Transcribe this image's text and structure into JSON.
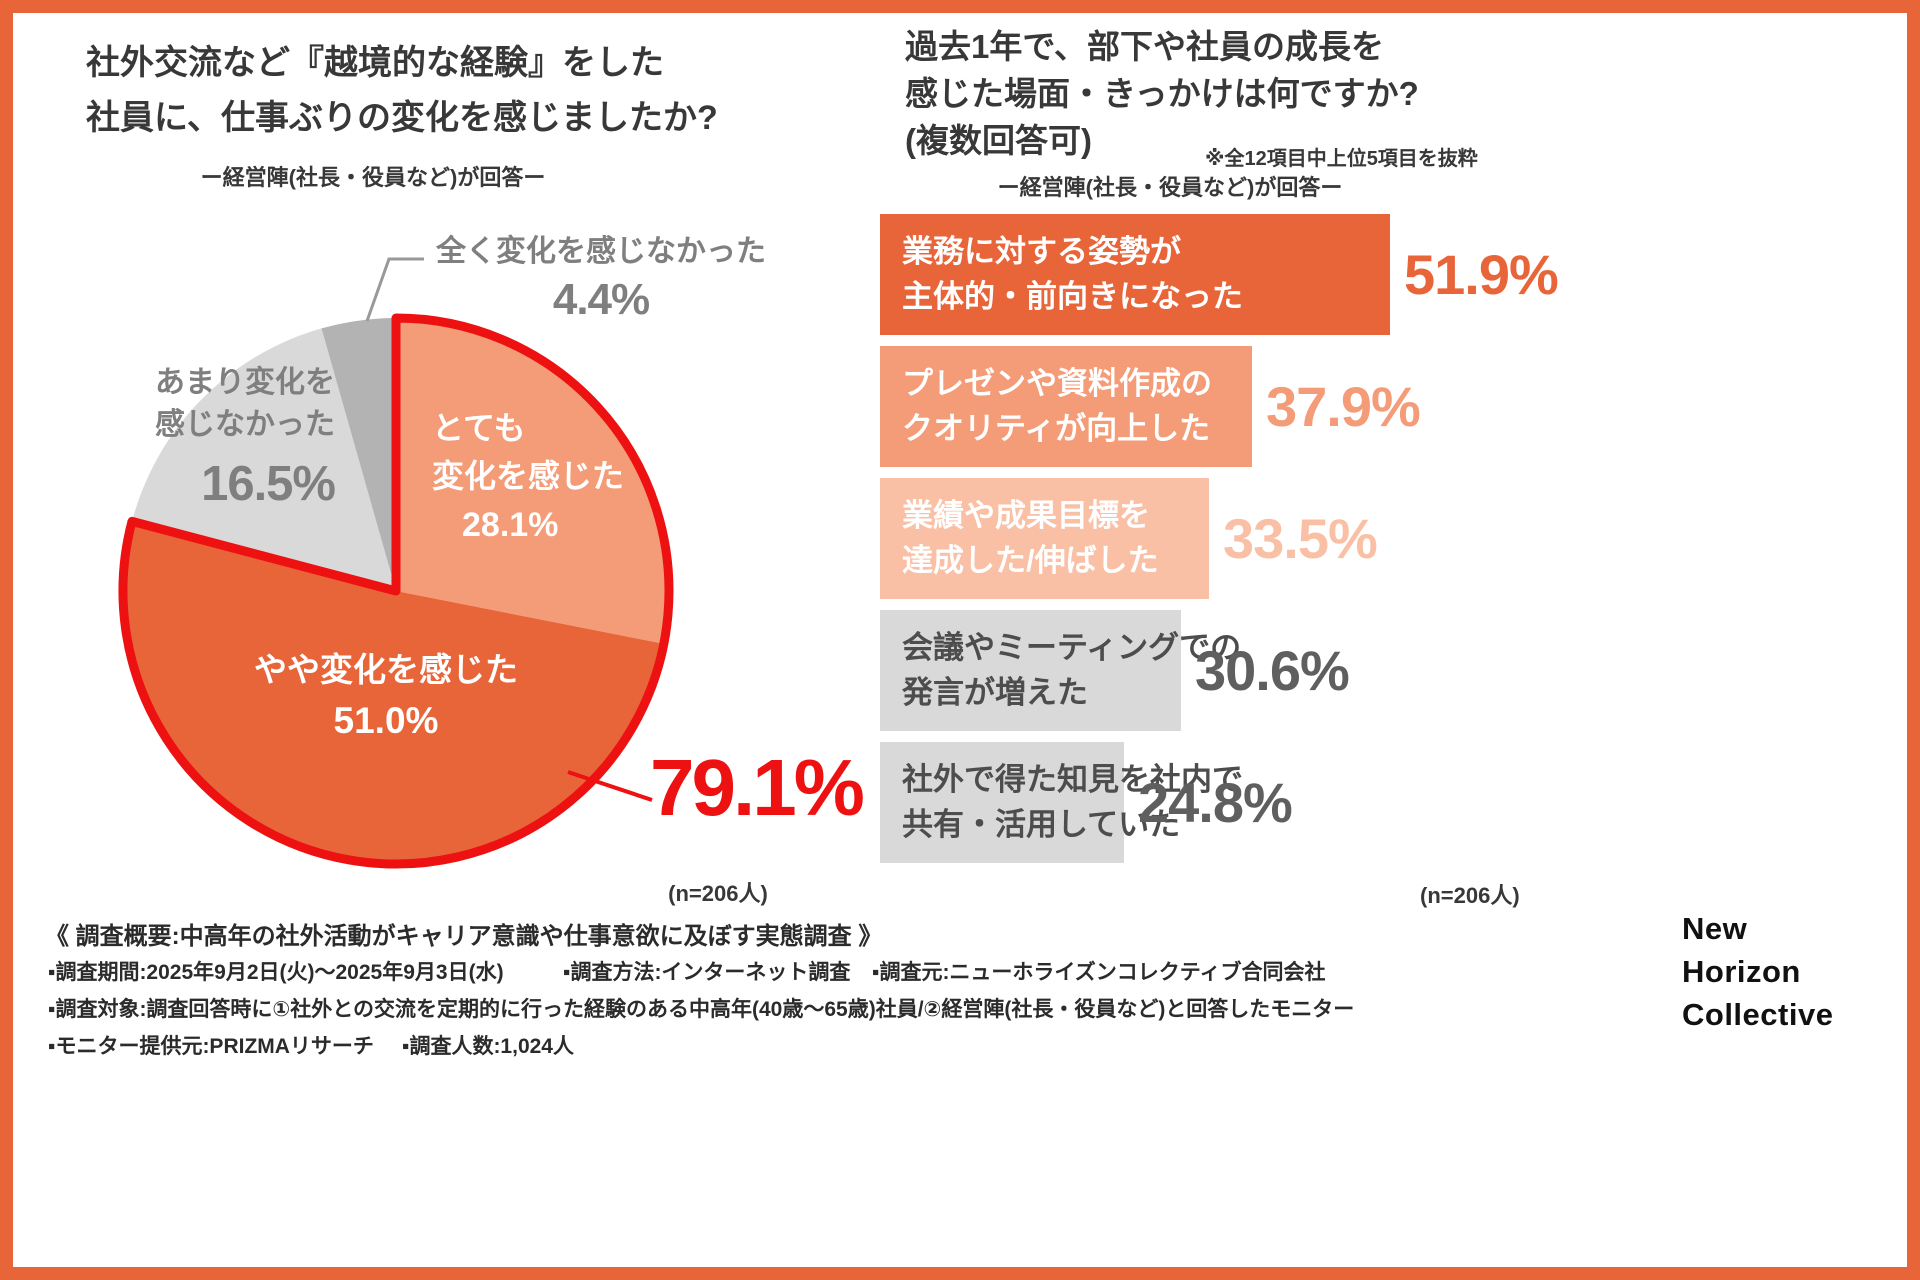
{
  "colors": {
    "accent_orange": "#e8653a",
    "salmon": "#f49b77",
    "light_salmon": "#f9c0a6",
    "light_gray": "#d9d9d9",
    "mid_gray": "#b3b3b3",
    "highlight_red": "#ee1111"
  },
  "left_chart": {
    "title_line1": "社外交流など『越境的な経験』をした",
    "title_line2": "社員に、仕事ぶりの変化を感じましたか?",
    "subtitle": "ー経営陣(社長・役員など)が回答ー",
    "sample_note": "(n=206人)"
  },
  "right_chart": {
    "title_line1": "過去1年で、部下や社員の成長を",
    "title_line2": "感じた場面・きっかけは何ですか?",
    "title_line3": "(複数回答可)",
    "note": "※全12項目中上位5項目を抜粋",
    "subtitle": "ー経営陣(社長・役員など)が回答ー",
    "sample_note": "(n=206人)"
  },
  "chart_data": [
    {
      "type": "pie",
      "title": "社外交流など『越境的な経験』をした社員に、仕事ぶりの変化を感じましたか?",
      "subtitle": "ー経営陣(社長・役員など)が回答ー",
      "sample_size": "n=206人",
      "start_angle_deg": 0,
      "direction": "clockwise",
      "segments": [
        {
          "label": "とても変化を感じた",
          "label_line1": "とても",
          "label_line2": "変化を感じた",
          "value": 28.1,
          "value_label": "28.1%",
          "color": "#f49b77",
          "text_color": "#ffffff"
        },
        {
          "label": "やや変化を感じた",
          "label_line1": "やや変化を感じた",
          "label_line2": "",
          "value": 51.0,
          "value_label": "51.0%",
          "color": "#e8653a",
          "text_color": "#ffffff"
        },
        {
          "label": "あまり変化を感じなかった",
          "label_line1": "あまり変化を",
          "label_line2": "感じなかった",
          "value": 16.5,
          "value_label": "16.5%",
          "color": "#d9d9d9",
          "text_color": "#7f7f7f"
        },
        {
          "label": "全く変化を感じなかった",
          "label_line1": "全く変化を感じなかった",
          "label_line2": "",
          "value": 4.4,
          "value_label": "4.4%",
          "color": "#b3b3b3",
          "text_color": "#7f7f7f"
        }
      ],
      "highlight": {
        "segment_indexes": [
          0,
          1
        ],
        "total_value": 79.1,
        "total_label": "79.1%",
        "color": "#ee1111"
      }
    },
    {
      "type": "bar",
      "orientation": "horizontal",
      "title": "過去1年で、部下や社員の成長を感じた場面・きっかけは何ですか?(複数回答可)",
      "note": "※全12項目中上位5項目を抜粋",
      "subtitle": "ー経営陣(社長・役員など)が回答ー",
      "sample_size": "n=206人",
      "xlim": [
        0,
        55
      ],
      "bars": [
        {
          "label": "業務に対する姿勢が主体的・前向きになった",
          "label_line1": "業務に対する姿勢が",
          "label_line2": "主体的・前向きになった",
          "value": 51.9,
          "value_label": "51.9%",
          "bar_color": "#e8653a",
          "label_color": "#ffffff",
          "value_color": "#e8653a"
        },
        {
          "label": "プレゼンや資料作成のクオリティが向上した",
          "label_line1": "プレゼンや資料作成の",
          "label_line2": "クオリティが向上した",
          "value": 37.9,
          "value_label": "37.9%",
          "bar_color": "#f49b77",
          "label_color": "#ffffff",
          "value_color": "#f49b77"
        },
        {
          "label": "業績や成果目標を達成した/伸ばした",
          "label_line1": "業績や成果目標を",
          "label_line2": "達成した/伸ばした",
          "value": 33.5,
          "value_label": "33.5%",
          "bar_color": "#f9c0a6",
          "label_color": "#ffffff",
          "value_color": "#f9c0a6"
        },
        {
          "label": "会議やミーティングでの発言が増えた",
          "label_line1": "会議やミーティングでの",
          "label_line2": "発言が増えた",
          "value": 30.6,
          "value_label": "30.6%",
          "bar_color": "#d9d9d9",
          "label_color": "#4d4d4d",
          "value_color": "#5f5f5f"
        },
        {
          "label": "社外で得た知見を社内で共有・活用していた",
          "label_line1": "社外で得た知見を社内で",
          "label_line2": "共有・活用していた",
          "value": 24.8,
          "value_label": "24.8%",
          "bar_color": "#d9d9d9",
          "label_color": "#4d4d4d",
          "value_color": "#5f5f5f"
        }
      ]
    }
  ],
  "footer": {
    "heading": "《 調査概要:中高年の社外活動がキャリア意識や仕事意欲に及ぼす実態調査 》",
    "survey_period": "▪調査期間:2025年9月2日(火)〜2025年9月3日(水)",
    "survey_method": "▪調査方法:インターネット調査",
    "survey_source": "▪調査元:ニューホライズンコレクティブ合同会社",
    "survey_target": "▪調査対象:調査回答時に①社外との交流を定期的に行った経験のある中高年(40歳〜65歳)社員/②経営陣(社長・役員など)と回答したモニター",
    "monitor_provider": "▪モニター提供元:PRIZMAリサーチ",
    "respondent_count": "▪調査人数:1,024人",
    "logo_line1": "New",
    "logo_line2": "Horizon",
    "logo_line3": "Collective"
  }
}
